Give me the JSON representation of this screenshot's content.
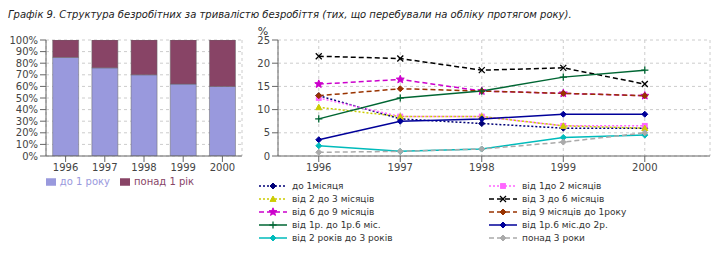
{
  "chart_data": [
    {
      "type": "bar",
      "title": "Графік 9. Структура безробітних за тривалістю безробіття (тих, що перебували на обліку протягом року).",
      "categories": [
        "1996",
        "1997",
        "1998",
        "1999",
        "2000"
      ],
      "series": [
        {
          "name": "до 1 року",
          "color": "#9999dd",
          "values": [
            85,
            76,
            70,
            62,
            60
          ]
        },
        {
          "name": "понад 1 рік",
          "color": "#884466",
          "values": [
            15,
            24,
            30,
            38,
            40
          ]
        }
      ],
      "stacked": true,
      "ylim": [
        0,
        100
      ],
      "yticks": [
        {
          "value": 0,
          "label": "0%"
        },
        {
          "value": 10,
          "label": "10%"
        },
        {
          "value": 20,
          "label": "20%"
        },
        {
          "value": 30,
          "label": "30%"
        },
        {
          "value": 40,
          "label": "40%"
        },
        {
          "value": 50,
          "label": "50%"
        },
        {
          "value": 60,
          "label": "60%"
        },
        {
          "value": 70,
          "label": "70%"
        },
        {
          "value": 80,
          "label": "80%"
        },
        {
          "value": 90,
          "label": "90%"
        },
        {
          "value": 100,
          "label": "100%"
        }
      ],
      "grid": true,
      "legend": "bottom"
    },
    {
      "type": "line",
      "ylabel": "%",
      "x": [
        1996,
        1997,
        1998,
        1999,
        2000
      ],
      "xlim": [
        1995.5,
        2000.8
      ],
      "xticks": [
        1996,
        1997,
        1998,
        1999,
        2000
      ],
      "ylim": [
        0,
        25
      ],
      "yticks": [
        0,
        5,
        10,
        15,
        20,
        25
      ],
      "grid": true,
      "legend": "bottom",
      "series": [
        {
          "name": "до 1місяця",
          "color": "#000077",
          "values": [
            13.0,
            8.0,
            7.0,
            6.0,
            6.0
          ],
          "marker": "diamond",
          "line_style": "dotted"
        },
        {
          "name": "від 1до 2 місяців",
          "color": "#ff66ff",
          "values": [
            12.5,
            8.5,
            8.5,
            6.5,
            6.5
          ],
          "marker": "square",
          "line_style": "dotted"
        },
        {
          "name": "від 2 до 3 місяців",
          "color": "#cccc00",
          "values": [
            10.5,
            8.5,
            8.5,
            6.5,
            6.0
          ],
          "marker": "triangle",
          "line_style": "dotted"
        },
        {
          "name": "від 3 до 6 місяців",
          "color": "#000000",
          "values": [
            21.5,
            21.0,
            18.5,
            19.0,
            15.5
          ],
          "marker": "x",
          "line_style": "dashed"
        },
        {
          "name": "від 6 до 9 місяців",
          "color": "#cc00cc",
          "values": [
            15.5,
            16.5,
            14.0,
            13.5,
            13.0
          ],
          "marker": "star",
          "line_style": "dashed"
        },
        {
          "name": "від 9 місяців до 1року",
          "color": "#993300",
          "values": [
            13.0,
            14.5,
            14.0,
            13.5,
            13.0
          ],
          "marker": "diamond",
          "line_style": "dashed"
        },
        {
          "name": "від 1р. до 1р.6 міс.",
          "color": "#006633",
          "values": [
            8.0,
            12.5,
            14.0,
            17.0,
            18.5
          ],
          "marker": "plus",
          "line_style": "solid"
        },
        {
          "name": "від 1р.6 міс.до 2р.",
          "color": "#000099",
          "values": [
            3.5,
            7.5,
            8.0,
            9.0,
            9.0
          ],
          "marker": "diamond",
          "line_style": "solid"
        },
        {
          "name": "від 2 років до 3 років",
          "color": "#00bbbb",
          "values": [
            2.2,
            1.0,
            1.5,
            4.0,
            4.5
          ],
          "marker": "diamond",
          "line_style": "solid"
        },
        {
          "name": "понад 3 роки",
          "color": "#aaaaaa",
          "values": [
            0.8,
            1.0,
            1.5,
            3.0,
            5.0
          ],
          "marker": "diamond",
          "line_style": "dashed"
        }
      ]
    }
  ]
}
